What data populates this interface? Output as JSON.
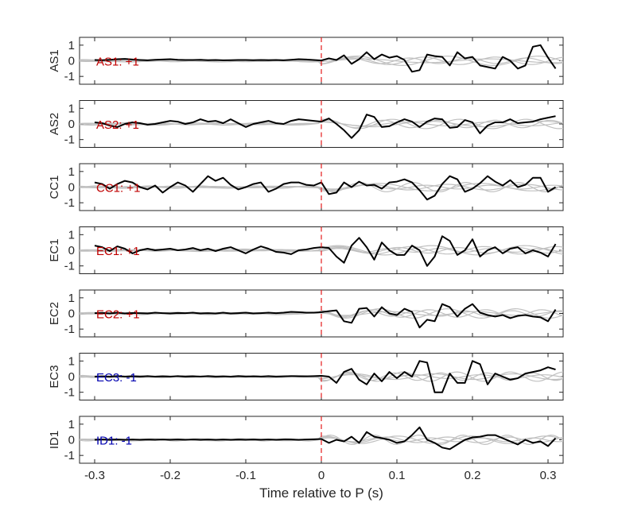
{
  "chart_data": {
    "type": "line",
    "xlabel": "Time relative to P (s)",
    "xlim": [
      -0.32,
      0.32
    ],
    "x_ticks": [
      -0.3,
      -0.2,
      -0.1,
      0,
      0.1,
      0.2,
      0.3
    ],
    "x_tick_labels": [
      "-0.3",
      "-0.2",
      "-0.1",
      "0",
      "0.1",
      "0.2",
      "0.3"
    ],
    "ylim": [
      -1.5,
      1.5
    ],
    "y_ticks": [
      1,
      0,
      -1
    ],
    "y_tick_labels": [
      "1",
      "0",
      "-1"
    ],
    "marker_time": 0,
    "colors": {
      "main": "#000000",
      "reference": "#c0c0c0",
      "marker": "#e41a1c",
      "positive": "#c00000",
      "negative": "#0000b0"
    },
    "panels": [
      {
        "ylabel": "AS1",
        "annotation": "AS1: +1",
        "polarity": "positive",
        "x": [
          -0.3,
          -0.29,
          -0.28,
          -0.27,
          -0.26,
          -0.25,
          -0.24,
          -0.23,
          -0.22,
          -0.21,
          -0.2,
          -0.19,
          -0.18,
          -0.17,
          -0.16,
          -0.15,
          -0.14,
          -0.13,
          -0.12,
          -0.11,
          -0.1,
          -0.09,
          -0.08,
          -0.07,
          -0.06,
          -0.05,
          -0.04,
          -0.03,
          -0.02,
          -0.01,
          0,
          0.01,
          0.02,
          0.03,
          0.04,
          0.05,
          0.06,
          0.07,
          0.08,
          0.09,
          0.1,
          0.11,
          0.12,
          0.13,
          0.14,
          0.15,
          0.16,
          0.17,
          0.18,
          0.19,
          0.2,
          0.21,
          0.22,
          0.23,
          0.24,
          0.25,
          0.26,
          0.27,
          0.28,
          0.29,
          0.3,
          0.31
        ],
        "y": [
          0.05,
          0.04,
          0.06,
          0.1,
          0.12,
          0.08,
          0.05,
          0.03,
          0.06,
          0.08,
          0.1,
          0.06,
          0.05,
          0.05,
          0.06,
          0.04,
          0.05,
          0.03,
          0.04,
          0.05,
          0.05,
          0.04,
          0.05,
          0.04,
          0.05,
          0.03,
          0.06,
          0.1,
          0.08,
          0.05,
          0.02,
          0.15,
          0.05,
          0.35,
          -0.2,
          0.1,
          0.55,
          0.1,
          0.4,
          0.2,
          0.3,
          0.05,
          -0.7,
          -0.6,
          0.4,
          0.3,
          0.25,
          -0.3,
          0.55,
          0.15,
          0.25,
          -0.3,
          -0.4,
          -0.5,
          0.25,
          0.0,
          -0.5,
          -0.3,
          0.9,
          1.0,
          0.2,
          -0.5
        ]
      },
      {
        "ylabel": "AS2",
        "annotation": "AS2: +1",
        "polarity": "positive",
        "x": [
          -0.3,
          -0.29,
          -0.28,
          -0.27,
          -0.26,
          -0.25,
          -0.24,
          -0.23,
          -0.22,
          -0.21,
          -0.2,
          -0.19,
          -0.18,
          -0.17,
          -0.16,
          -0.15,
          -0.14,
          -0.13,
          -0.12,
          -0.11,
          -0.1,
          -0.09,
          -0.08,
          -0.07,
          -0.06,
          -0.05,
          -0.04,
          -0.03,
          -0.02,
          -0.01,
          0,
          0.01,
          0.02,
          0.03,
          0.04,
          0.05,
          0.06,
          0.07,
          0.08,
          0.09,
          0.1,
          0.11,
          0.12,
          0.13,
          0.14,
          0.15,
          0.16,
          0.17,
          0.18,
          0.19,
          0.2,
          0.21,
          0.22,
          0.23,
          0.24,
          0.25,
          0.26,
          0.27,
          0.28,
          0.29,
          0.3,
          0.31
        ],
        "y": [
          0.1,
          0.05,
          -0.1,
          -0.2,
          0.0,
          0.1,
          0.05,
          -0.05,
          0.0,
          0.1,
          0.2,
          0.15,
          0.0,
          0.1,
          0.3,
          0.15,
          0.2,
          0.05,
          0.3,
          0.05,
          -0.2,
          0.0,
          0.1,
          0.2,
          0.05,
          0.0,
          0.2,
          0.3,
          0.25,
          0.2,
          0.15,
          0.35,
          0.0,
          -0.4,
          -0.9,
          -0.4,
          0.6,
          0.45,
          -0.2,
          -0.15,
          0.1,
          0.3,
          0.15,
          -0.2,
          0.15,
          0.35,
          0.3,
          -0.25,
          -0.2,
          0.25,
          0.1,
          -0.6,
          -0.1,
          0.1,
          0.1,
          0.3,
          0.05,
          0.1,
          0.15,
          0.3,
          0.4,
          0.5
        ]
      },
      {
        "ylabel": "CC1",
        "annotation": "CC1: +1",
        "polarity": "positive",
        "x": [
          -0.3,
          -0.29,
          -0.28,
          -0.27,
          -0.26,
          -0.25,
          -0.24,
          -0.23,
          -0.22,
          -0.21,
          -0.2,
          -0.19,
          -0.18,
          -0.17,
          -0.16,
          -0.15,
          -0.14,
          -0.13,
          -0.12,
          -0.11,
          -0.1,
          -0.09,
          -0.08,
          -0.07,
          -0.06,
          -0.05,
          -0.04,
          -0.03,
          -0.02,
          -0.01,
          0,
          0.01,
          0.02,
          0.03,
          0.04,
          0.05,
          0.06,
          0.07,
          0.08,
          0.09,
          0.1,
          0.11,
          0.12,
          0.13,
          0.14,
          0.15,
          0.16,
          0.17,
          0.18,
          0.19,
          0.2,
          0.21,
          0.22,
          0.23,
          0.24,
          0.25,
          0.26,
          0.27,
          0.28,
          0.29,
          0.3,
          0.31
        ],
        "y": [
          0.3,
          0.2,
          -0.1,
          0.2,
          0.4,
          0.3,
          0.0,
          -0.15,
          0.1,
          -0.35,
          0.0,
          0.3,
          0.1,
          -0.3,
          0.2,
          0.7,
          0.4,
          0.6,
          0.15,
          -0.15,
          0.0,
          0.2,
          0.3,
          -0.3,
          -0.1,
          0.2,
          0.3,
          0.3,
          0.15,
          0.1,
          0.3,
          -0.45,
          -0.35,
          0.3,
          0.0,
          0.35,
          0.1,
          0.15,
          -0.1,
          0.3,
          0.35,
          0.5,
          0.3,
          -0.2,
          -0.8,
          -0.55,
          0.2,
          0.7,
          0.5,
          -0.3,
          -0.1,
          0.25,
          0.7,
          0.35,
          0.1,
          0.45,
          0.0,
          0.15,
          0.6,
          0.6,
          -0.3,
          0.0
        ]
      },
      {
        "ylabel": "EC1",
        "annotation": "EC1: +1",
        "polarity": "positive",
        "x": [
          -0.3,
          -0.29,
          -0.28,
          -0.27,
          -0.26,
          -0.25,
          -0.24,
          -0.23,
          -0.22,
          -0.21,
          -0.2,
          -0.19,
          -0.18,
          -0.17,
          -0.16,
          -0.15,
          -0.14,
          -0.13,
          -0.12,
          -0.11,
          -0.1,
          -0.09,
          -0.08,
          -0.07,
          -0.06,
          -0.05,
          -0.04,
          -0.03,
          -0.02,
          -0.01,
          0,
          0.01,
          0.02,
          0.03,
          0.04,
          0.05,
          0.06,
          0.07,
          0.08,
          0.09,
          0.1,
          0.11,
          0.12,
          0.13,
          0.14,
          0.15,
          0.16,
          0.17,
          0.18,
          0.19,
          0.2,
          0.21,
          0.22,
          0.23,
          0.24,
          0.25,
          0.26,
          0.27,
          0.28,
          0.29,
          0.3,
          0.31
        ],
        "y": [
          0.3,
          0.2,
          -0.05,
          0.25,
          0.1,
          -0.2,
          0.0,
          0.1,
          0.0,
          0.05,
          0.1,
          0.0,
          0.05,
          0.15,
          0.0,
          0.1,
          -0.05,
          0.1,
          0.2,
          0.0,
          -0.2,
          0.05,
          0.25,
          0.1,
          -0.1,
          -0.15,
          -0.25,
          0.0,
          0.05,
          0.15,
          0.2,
          0.15,
          -0.4,
          -0.8,
          0.3,
          0.8,
          0.2,
          -0.6,
          0.5,
          0.0,
          -0.3,
          -0.3,
          0.3,
          0.0,
          -1.0,
          -0.4,
          0.9,
          0.6,
          -0.3,
          0.0,
          0.7,
          -0.4,
          0.0,
          0.2,
          -0.2,
          0.1,
          0.2,
          -0.2,
          0.0,
          -0.15,
          -0.4,
          0.4
        ]
      },
      {
        "ylabel": "EC2",
        "annotation": "EC2: +1",
        "polarity": "positive",
        "x": [
          -0.3,
          -0.29,
          -0.28,
          -0.27,
          -0.26,
          -0.25,
          -0.24,
          -0.23,
          -0.22,
          -0.21,
          -0.2,
          -0.19,
          -0.18,
          -0.17,
          -0.16,
          -0.15,
          -0.14,
          -0.13,
          -0.12,
          -0.11,
          -0.1,
          -0.09,
          -0.08,
          -0.07,
          -0.06,
          -0.05,
          -0.04,
          -0.03,
          -0.02,
          -0.01,
          0,
          0.01,
          0.02,
          0.03,
          0.04,
          0.05,
          0.06,
          0.07,
          0.08,
          0.09,
          0.1,
          0.11,
          0.12,
          0.13,
          0.14,
          0.15,
          0.16,
          0.17,
          0.18,
          0.19,
          0.2,
          0.21,
          0.22,
          0.23,
          0.24,
          0.25,
          0.26,
          0.27,
          0.28,
          0.29,
          0.3,
          0.31
        ],
        "y": [
          0.02,
          0.03,
          0.0,
          0.05,
          0.0,
          0.03,
          0.02,
          0.0,
          0.05,
          0.02,
          0.0,
          0.03,
          0.02,
          0.05,
          0.0,
          0.02,
          0.0,
          0.05,
          0.0,
          0.02,
          0.05,
          0.0,
          0.02,
          0.05,
          0.02,
          0.05,
          0.1,
          0.08,
          0.05,
          0.05,
          0.08,
          0.15,
          0.2,
          -0.5,
          -0.6,
          0.3,
          0.35,
          -0.2,
          0.4,
          0.0,
          -0.1,
          0.3,
          0.1,
          -0.9,
          -0.4,
          -0.5,
          0.6,
          0.4,
          -0.2,
          0.3,
          0.6,
          0.05,
          -0.1,
          -0.2,
          -0.1,
          -0.3,
          -0.15,
          -0.1,
          -0.2,
          -0.25,
          -0.5,
          0.25
        ]
      },
      {
        "ylabel": "EC3",
        "annotation": "EC3: -1",
        "polarity": "negative",
        "x": [
          -0.3,
          -0.29,
          -0.28,
          -0.27,
          -0.26,
          -0.25,
          -0.24,
          -0.23,
          -0.22,
          -0.21,
          -0.2,
          -0.19,
          -0.18,
          -0.17,
          -0.16,
          -0.15,
          -0.14,
          -0.13,
          -0.12,
          -0.11,
          -0.1,
          -0.09,
          -0.08,
          -0.07,
          -0.06,
          -0.05,
          -0.04,
          -0.03,
          -0.02,
          -0.01,
          0,
          0.01,
          0.02,
          0.03,
          0.04,
          0.05,
          0.06,
          0.07,
          0.08,
          0.09,
          0.1,
          0.11,
          0.12,
          0.13,
          0.14,
          0.15,
          0.16,
          0.17,
          0.18,
          0.19,
          0.2,
          0.21,
          0.22,
          0.23,
          0.24,
          0.25,
          0.26,
          0.27,
          0.28,
          0.29,
          0.3,
          0.31
        ],
        "y": [
          0.0,
          0.02,
          0.0,
          0.03,
          0.0,
          0.02,
          0.0,
          0.03,
          0.0,
          0.02,
          0.0,
          0.03,
          0.0,
          0.02,
          0.0,
          0.03,
          0.0,
          0.02,
          0.0,
          0.03,
          0.0,
          0.02,
          0.0,
          0.03,
          0.0,
          0.02,
          0.03,
          0.02,
          0.02,
          0.03,
          0.05,
          0.0,
          -0.4,
          0.3,
          0.5,
          -0.2,
          -0.5,
          0.2,
          -0.3,
          0.3,
          -0.1,
          0.3,
          0.0,
          1.0,
          0.9,
          -1.0,
          -1.0,
          0.2,
          -0.4,
          -0.4,
          1.0,
          0.8,
          -0.5,
          0.2,
          0.0,
          -0.2,
          -0.1,
          0.2,
          0.3,
          0.4,
          0.6,
          0.45
        ]
      },
      {
        "ylabel": "ID1",
        "annotation": "ID1: -1",
        "polarity": "negative",
        "x": [
          -0.3,
          -0.29,
          -0.28,
          -0.27,
          -0.26,
          -0.25,
          -0.24,
          -0.23,
          -0.22,
          -0.21,
          -0.2,
          -0.19,
          -0.18,
          -0.17,
          -0.16,
          -0.15,
          -0.14,
          -0.13,
          -0.12,
          -0.11,
          -0.1,
          -0.09,
          -0.08,
          -0.07,
          -0.06,
          -0.05,
          -0.04,
          -0.03,
          -0.02,
          -0.01,
          0,
          0.01,
          0.02,
          0.03,
          0.04,
          0.05,
          0.06,
          0.07,
          0.08,
          0.09,
          0.1,
          0.11,
          0.12,
          0.13,
          0.14,
          0.15,
          0.16,
          0.17,
          0.18,
          0.19,
          0.2,
          0.21,
          0.22,
          0.23,
          0.24,
          0.25,
          0.26,
          0.27,
          0.28,
          0.29,
          0.3,
          0.31
        ],
        "y": [
          0.0,
          0.02,
          0.0,
          0.02,
          0.0,
          0.02,
          0.0,
          0.02,
          0.0,
          0.02,
          0.0,
          0.02,
          0.0,
          0.02,
          0.0,
          0.02,
          0.0,
          0.02,
          0.0,
          0.02,
          0.0,
          0.02,
          0.0,
          0.02,
          0.0,
          0.02,
          0.02,
          0.0,
          0.02,
          0.03,
          0.05,
          -0.2,
          0.0,
          -0.1,
          0.2,
          -0.2,
          0.5,
          0.2,
          0.1,
          0.0,
          -0.2,
          -0.1,
          0.3,
          0.8,
          0.0,
          -0.2,
          -0.5,
          -0.6,
          -0.3,
          0.0,
          0.15,
          0.2,
          0.3,
          0.3,
          0.1,
          -0.1,
          -0.3,
          0.0,
          -0.2,
          -0.1,
          -0.4,
          0.1
        ]
      }
    ]
  }
}
